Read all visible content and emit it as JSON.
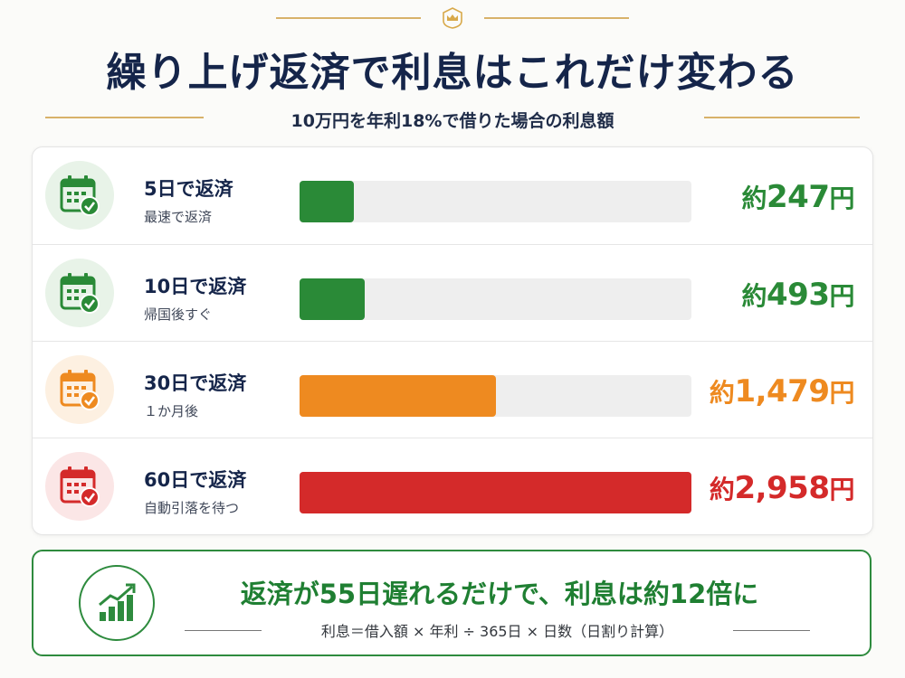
{
  "header": {
    "title": "繰り上げ返済で利息はこれだけ変わる",
    "subtitle": "10万円を年利18%で借りた場合の利息額",
    "crown_icon": "crown-icon"
  },
  "rows": [
    {
      "title": "5日で返済",
      "sub": "最速で返済",
      "prefix": "約",
      "amount": "247",
      "unit": "円",
      "color": "#2a8a37",
      "icon_bg": "#e8f3e8",
      "icon": "calendar-check-icon"
    },
    {
      "title": "10日で返済",
      "sub": "帰国後すぐ",
      "prefix": "約",
      "amount": "493",
      "unit": "円",
      "color": "#2a8a37",
      "icon_bg": "#e8f3e8",
      "icon": "calendar-check-icon"
    },
    {
      "title": "30日で返済",
      "sub": "１か月後",
      "prefix": "約",
      "amount": "1,479",
      "unit": "円",
      "color": "#ee8a20",
      "icon_bg": "#fdf0e1",
      "icon": "calendar-check-icon"
    },
    {
      "title": "60日で返済",
      "sub": "自動引落を待つ",
      "prefix": "約",
      "amount": "2,958",
      "unit": "円",
      "color": "#d42a2a",
      "icon_bg": "#fbe6e6",
      "icon": "calendar-check-icon"
    }
  ],
  "chart_data": {
    "type": "bar",
    "orientation": "horizontal",
    "title": "10万円を年利18%で借りた場合の利息額",
    "categories": [
      "5日で返済",
      "10日で返済",
      "30日で返済",
      "60日で返済"
    ],
    "values": [
      247,
      493,
      1479,
      2958
    ],
    "value_labels": [
      "約247円",
      "約493円",
      "約1,479円",
      "約2,958円"
    ],
    "xlim": [
      0,
      2958
    ],
    "bar_colors": [
      "#2a8a37",
      "#2a8a37",
      "#ee8a20",
      "#d42a2a"
    ],
    "grid": false,
    "legend": "none"
  },
  "banner": {
    "main": "返済が55日遅れるだけで、利息は約12倍に",
    "formula": "利息＝借入額 × 年利 ÷ 365日 × 日数（日割り計算）",
    "icon": "growth-chart-icon",
    "color": "#1f7f32"
  }
}
